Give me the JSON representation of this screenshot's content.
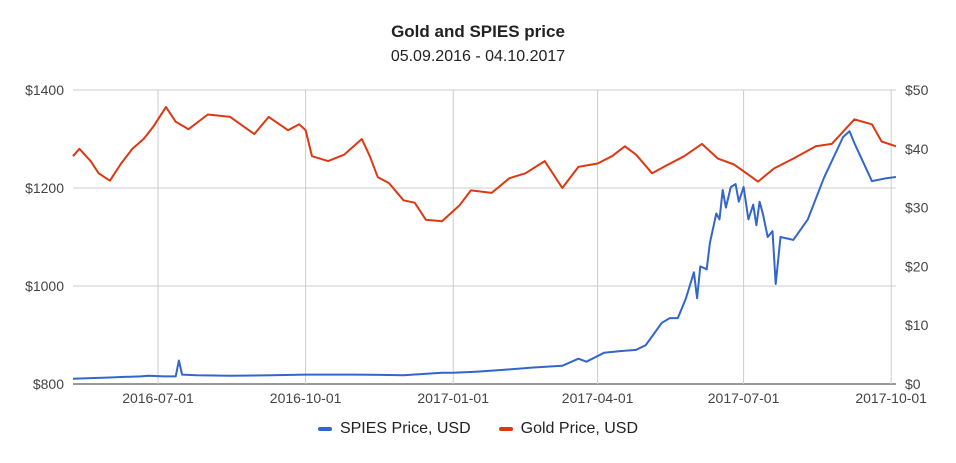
{
  "chart_data": {
    "type": "line",
    "title": "Gold and SPIES price",
    "subtitle": "05.09.2016 - 04.10.2017",
    "x_range": [
      "2016-05-09",
      "2017-10-04"
    ],
    "x_ticks": [
      "2016-07-01",
      "2016-10-01",
      "2017-01-01",
      "2017-04-01",
      "2017-07-01",
      "2017-10-01"
    ],
    "x_tick_labels": [
      "2016-07-01",
      "2016-10-01",
      "2017-01-01",
      "2017-04-01",
      "2017-07-01",
      "2017-10-01"
    ],
    "y_left": {
      "min": 800,
      "max": 1400,
      "ticks": [
        800,
        1000,
        1200,
        1400
      ],
      "tick_labels": [
        "$800",
        "$1000",
        "$1200",
        "$1400"
      ]
    },
    "y_right": {
      "min": 0,
      "max": 50,
      "ticks": [
        0,
        10,
        20,
        30,
        40,
        50
      ],
      "tick_labels": [
        "$0",
        "$10",
        "$20",
        "$30",
        "$40",
        "$50"
      ]
    },
    "grid": true,
    "legend_position": "bottom",
    "series": [
      {
        "name": "SPIES Price, USD",
        "axis": "right",
        "color": "#3366cc",
        "points": [
          [
            "2016-05-09",
            0.9
          ],
          [
            "2016-05-20",
            1.0
          ],
          [
            "2016-06-01",
            1.1
          ],
          [
            "2016-06-10",
            1.2
          ],
          [
            "2016-06-20",
            1.3
          ],
          [
            "2016-06-25",
            1.4
          ],
          [
            "2016-07-05",
            1.3
          ],
          [
            "2016-07-12",
            1.3
          ],
          [
            "2016-07-14",
            4.0
          ],
          [
            "2016-07-16",
            1.6
          ],
          [
            "2016-07-25",
            1.5
          ],
          [
            "2016-08-15",
            1.4
          ],
          [
            "2016-09-10",
            1.5
          ],
          [
            "2016-10-01",
            1.6
          ],
          [
            "2016-11-01",
            1.6
          ],
          [
            "2016-12-01",
            1.5
          ],
          [
            "2016-12-25",
            1.9
          ],
          [
            "2017-01-01",
            1.9
          ],
          [
            "2017-01-15",
            2.1
          ],
          [
            "2017-02-01",
            2.4
          ],
          [
            "2017-02-20",
            2.8
          ],
          [
            "2017-03-10",
            3.1
          ],
          [
            "2017-03-20",
            4.3
          ],
          [
            "2017-03-25",
            3.8
          ],
          [
            "2017-04-05",
            5.3
          ],
          [
            "2017-04-15",
            5.6
          ],
          [
            "2017-04-25",
            5.8
          ],
          [
            "2017-05-01",
            6.6
          ],
          [
            "2017-05-06",
            8.5
          ],
          [
            "2017-05-11",
            10.4
          ],
          [
            "2017-05-16",
            11.2
          ],
          [
            "2017-05-21",
            11.2
          ],
          [
            "2017-05-26",
            14.5
          ],
          [
            "2017-05-31",
            19.0
          ],
          [
            "2017-06-02",
            14.6
          ],
          [
            "2017-06-04",
            20.0
          ],
          [
            "2017-06-08",
            19.5
          ],
          [
            "2017-06-10",
            24.0
          ],
          [
            "2017-06-14",
            29.0
          ],
          [
            "2017-06-16",
            28.0
          ],
          [
            "2017-06-18",
            33.0
          ],
          [
            "2017-06-20",
            30.0
          ],
          [
            "2017-06-23",
            33.5
          ],
          [
            "2017-06-26",
            34.0
          ],
          [
            "2017-06-28",
            31.0
          ],
          [
            "2017-07-01",
            33.5
          ],
          [
            "2017-07-04",
            28.0
          ],
          [
            "2017-07-07",
            30.5
          ],
          [
            "2017-07-09",
            27.0
          ],
          [
            "2017-07-11",
            31.0
          ],
          [
            "2017-07-13",
            29.0
          ],
          [
            "2017-07-16",
            25.0
          ],
          [
            "2017-07-19",
            26.0
          ],
          [
            "2017-07-21",
            17.0
          ],
          [
            "2017-07-24",
            25.0
          ],
          [
            "2017-08-01",
            24.5
          ],
          [
            "2017-08-10",
            28.0
          ],
          [
            "2017-08-20",
            35.0
          ],
          [
            "2017-09-01",
            42.0
          ],
          [
            "2017-09-05",
            43.0
          ],
          [
            "2017-09-08",
            41.0
          ],
          [
            "2017-09-19",
            34.5
          ],
          [
            "2017-09-28",
            35.0
          ],
          [
            "2017-10-04",
            35.2
          ]
        ]
      },
      {
        "name": "Gold Price, USD",
        "axis": "left",
        "color": "#dc3912",
        "points": [
          [
            "2016-05-09",
            1265
          ],
          [
            "2016-05-13",
            1280
          ],
          [
            "2016-05-20",
            1255
          ],
          [
            "2016-05-25",
            1230
          ],
          [
            "2016-06-01",
            1215
          ],
          [
            "2016-06-08",
            1250
          ],
          [
            "2016-06-15",
            1280
          ],
          [
            "2016-06-22",
            1300
          ],
          [
            "2016-06-28",
            1325
          ],
          [
            "2016-07-06",
            1365
          ],
          [
            "2016-07-12",
            1335
          ],
          [
            "2016-07-20",
            1320
          ],
          [
            "2016-08-01",
            1350
          ],
          [
            "2016-08-15",
            1345
          ],
          [
            "2016-08-30",
            1310
          ],
          [
            "2016-09-08",
            1345
          ],
          [
            "2016-09-20",
            1318
          ],
          [
            "2016-09-27",
            1330
          ],
          [
            "2016-10-01",
            1318
          ],
          [
            "2016-10-05",
            1265
          ],
          [
            "2016-10-15",
            1255
          ],
          [
            "2016-10-25",
            1268
          ],
          [
            "2016-11-05",
            1300
          ],
          [
            "2016-11-10",
            1265
          ],
          [
            "2016-11-15",
            1222
          ],
          [
            "2016-11-22",
            1210
          ],
          [
            "2016-12-01",
            1175
          ],
          [
            "2016-12-08",
            1170
          ],
          [
            "2016-12-15",
            1135
          ],
          [
            "2016-12-25",
            1132
          ],
          [
            "2017-01-05",
            1165
          ],
          [
            "2017-01-12",
            1195
          ],
          [
            "2017-01-25",
            1190
          ],
          [
            "2017-02-05",
            1220
          ],
          [
            "2017-02-15",
            1230
          ],
          [
            "2017-02-27",
            1255
          ],
          [
            "2017-03-10",
            1200
          ],
          [
            "2017-03-20",
            1243
          ],
          [
            "2017-04-01",
            1250
          ],
          [
            "2017-04-10",
            1265
          ],
          [
            "2017-04-18",
            1285
          ],
          [
            "2017-04-25",
            1268
          ],
          [
            "2017-05-05",
            1230
          ],
          [
            "2017-05-15",
            1248
          ],
          [
            "2017-05-25",
            1265
          ],
          [
            "2017-06-05",
            1290
          ],
          [
            "2017-06-15",
            1260
          ],
          [
            "2017-06-25",
            1248
          ],
          [
            "2017-07-05",
            1225
          ],
          [
            "2017-07-10",
            1213
          ],
          [
            "2017-07-20",
            1240
          ],
          [
            "2017-08-01",
            1260
          ],
          [
            "2017-08-15",
            1285
          ],
          [
            "2017-08-25",
            1290
          ],
          [
            "2017-09-08",
            1340
          ],
          [
            "2017-09-19",
            1330
          ],
          [
            "2017-09-25",
            1295
          ],
          [
            "2017-10-04",
            1285
          ]
        ]
      }
    ]
  }
}
